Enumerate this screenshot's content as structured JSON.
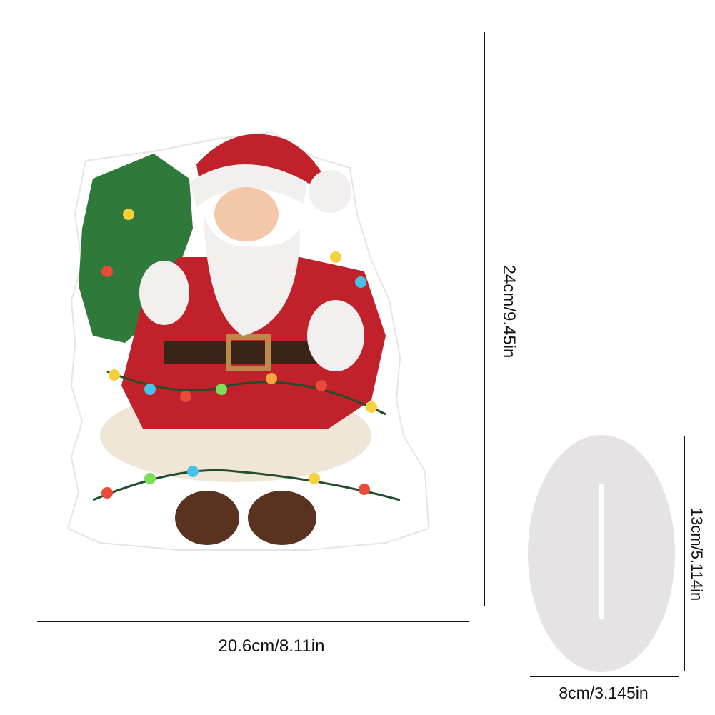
{
  "product": {
    "width_label": "20.6cm/8.11in",
    "height_label": "24cm/9.45in"
  },
  "stand": {
    "width_label": "8cm/3.145in",
    "height_label": "13cm/5.114in",
    "color": "#e6e3e4"
  },
  "colors": {
    "suit_red": "#c0212b",
    "fur_white": "#f2f0ee",
    "tree_green": "#2f7a3a",
    "boot_brown": "#5a3320"
  }
}
